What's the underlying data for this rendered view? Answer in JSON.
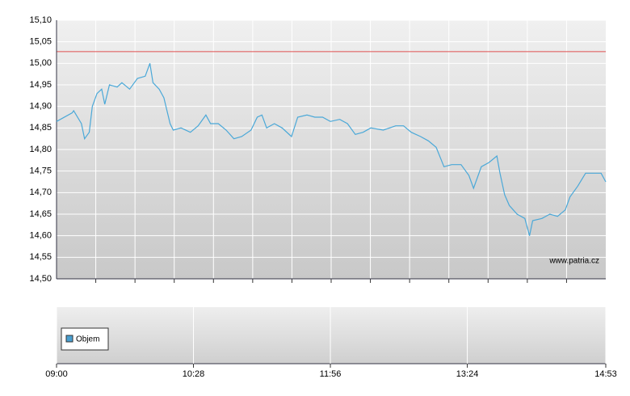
{
  "chart_data": {
    "type": "line",
    "x": [
      "09:00",
      "09:10",
      "09:11",
      "09:16",
      "09:18",
      "09:21",
      "09:23",
      "09:26",
      "09:29",
      "09:31",
      "09:34",
      "09:39",
      "09:42",
      "09:47",
      "09:52",
      "09:57",
      "10:00",
      "10:02",
      "10:06",
      "10:09",
      "10:13",
      "10:15",
      "10:20",
      "10:26",
      "10:31",
      "10:36",
      "10:39",
      "10:44",
      "10:49",
      "10:54",
      "10:59",
      "11:05",
      "11:09",
      "11:12",
      "11:15",
      "11:20",
      "11:25",
      "11:31",
      "11:35",
      "11:41",
      "11:46",
      "11:51",
      "11:56",
      "12:02",
      "12:07",
      "12:12",
      "12:17",
      "12:22",
      "12:30",
      "12:38",
      "12:43",
      "12:48",
      "12:54",
      "12:59",
      "13:04",
      "13:09",
      "13:14",
      "13:20",
      "13:25",
      "13:28",
      "13:33",
      "13:38",
      "13:43",
      "13:45",
      "13:48",
      "13:51",
      "13:56",
      "14:01",
      "14:04",
      "14:06",
      "14:12",
      "14:17",
      "14:22",
      "14:27",
      "14:30",
      "14:35",
      "14:40",
      "14:45",
      "14:50",
      "14:53"
    ],
    "series": [
      {
        "color": "#4aa8d8",
        "values": [
          14.865,
          14.885,
          14.89,
          14.86,
          14.825,
          14.84,
          14.9,
          14.93,
          14.94,
          14.905,
          14.95,
          14.945,
          14.955,
          14.94,
          14.965,
          14.97,
          15.0,
          14.955,
          14.94,
          14.92,
          14.86,
          14.845,
          14.85,
          14.84,
          14.855,
          14.88,
          14.86,
          14.86,
          14.845,
          14.825,
          14.83,
          14.845,
          14.875,
          14.88,
          14.85,
          14.86,
          14.85,
          14.83,
          14.875,
          14.88,
          14.875,
          14.875,
          14.865,
          14.87,
          14.86,
          14.835,
          14.84,
          14.85,
          14.845,
          14.855,
          14.855,
          14.84,
          14.83,
          14.82,
          14.805,
          14.76,
          14.765,
          14.765,
          14.74,
          14.71,
          14.76,
          14.77,
          14.785,
          14.745,
          14.695,
          14.67,
          14.65,
          14.64,
          14.6,
          14.635,
          14.64,
          14.65,
          14.645,
          14.66,
          14.69,
          14.715,
          14.745,
          14.745,
          14.745,
          14.725
        ]
      }
    ],
    "reference_line": {
      "value": 15.027,
      "color": "#e05050"
    },
    "xlim": [
      "09:00",
      "14:53"
    ],
    "xticks": [
      "09:00",
      "10:28",
      "11:56",
      "13:24",
      "14:53"
    ],
    "ylim": [
      14.5,
      15.1
    ],
    "yticks": [
      {
        "value": 14.5,
        "label": "14,50"
      },
      {
        "value": 14.55,
        "label": "14,55"
      },
      {
        "value": 14.6,
        "label": "14,60"
      },
      {
        "value": 14.65,
        "label": "14,65"
      },
      {
        "value": 14.7,
        "label": "14,70"
      },
      {
        "value": 14.75,
        "label": "14,75"
      },
      {
        "value": 14.8,
        "label": "14,80"
      },
      {
        "value": 14.85,
        "label": "14,85"
      },
      {
        "value": 14.9,
        "label": "14,90"
      },
      {
        "value": 14.95,
        "label": "14,95"
      },
      {
        "value": 15.0,
        "label": "15,00"
      },
      {
        "value": 15.05,
        "label": "15,05"
      },
      {
        "value": 15.1,
        "label": "15,10"
      }
    ],
    "grid": true,
    "watermark": "www.patria.cz",
    "volume": {
      "name": "Objem",
      "color": "#4a9fd0"
    }
  }
}
